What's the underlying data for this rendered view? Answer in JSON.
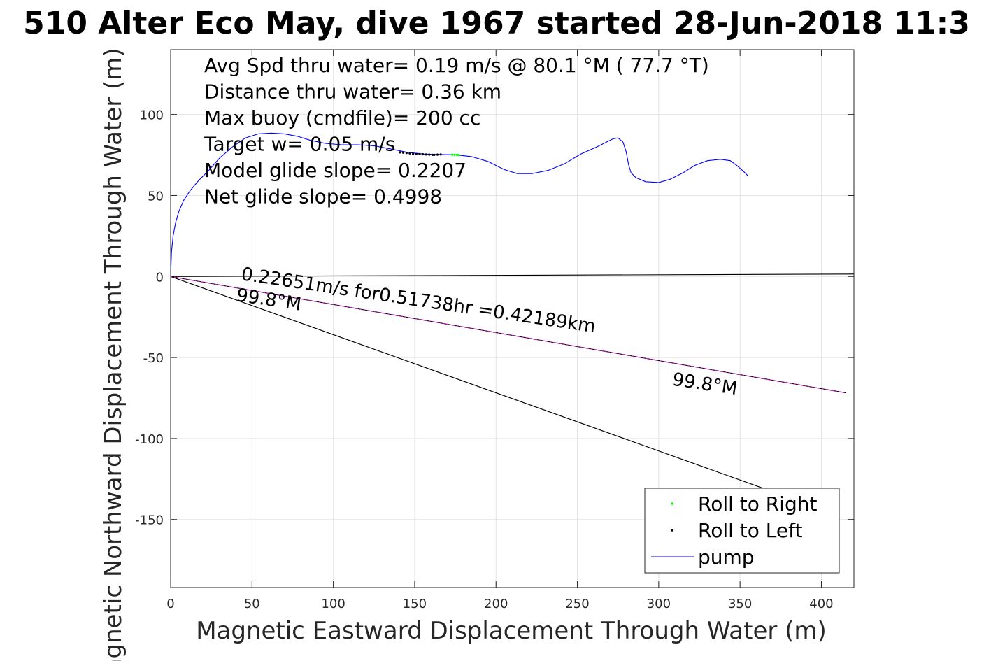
{
  "chart_data": {
    "type": "line",
    "title": "510 Alter Eco May, dive 1967 started 28-Jun-2018 11:3",
    "xlabel": "Magnetic Eastward Displacement Through Water (m)",
    "ylabel": "Magnetic Northward Displacement Through Water (m)",
    "xlim": [
      0,
      420
    ],
    "ylim": [
      -192,
      140
    ],
    "xticks": [
      0,
      50,
      100,
      150,
      200,
      250,
      300,
      350,
      400
    ],
    "yticks": [
      -150,
      -100,
      -50,
      0,
      50,
      100
    ],
    "xtick_labels": [
      "0",
      "50",
      "100",
      "150",
      "200",
      "250",
      "300",
      "350",
      "400"
    ],
    "ytick_labels": [
      "-150",
      "-100",
      "-50",
      "0",
      "50",
      "100"
    ],
    "grid": true,
    "info_lines": [
      "Avg Spd thru water=  0.19 m/s @  80.1 °M ( 77.7 °T)",
      "Distance thru water=  0.36 km",
      "Max buoy (cmdfile)= 200 cc",
      "Target w= 0.05 m/s",
      "Model glide slope= 0.2207",
      "Net glide slope= 0.4998"
    ],
    "annotations": [
      {
        "text": "0.22651m/s for0.51738hr =0.42189km",
        "x": 43,
        "y": -2,
        "angle_deg": 8.5
      },
      {
        "text": "99.8°M",
        "x": 40,
        "y": -15,
        "angle_deg": 8.5
      },
      {
        "text": "99.8°M",
        "x": 308,
        "y": -67,
        "angle_deg": 8.5
      }
    ],
    "series": [
      {
        "name": "pump",
        "kind": "line",
        "color": "#0000ff",
        "x": [
          0,
          0.5,
          1.5,
          3,
          5,
          8,
          12,
          17,
          23,
          30,
          38,
          46,
          54,
          62,
          70,
          78,
          86,
          95,
          105,
          115,
          125,
          135,
          145,
          155,
          165,
          175,
          185,
          195,
          205,
          213,
          222,
          232,
          242,
          252,
          262,
          268,
          272,
          275,
          278,
          280,
          281.5,
          283,
          286,
          292,
          300,
          307,
          315,
          322,
          330,
          338,
          344,
          348,
          352,
          355
        ],
        "y": [
          0,
          15,
          25,
          33,
          40,
          47,
          53,
          59,
          65,
          73,
          80,
          85.5,
          88,
          88.5,
          88,
          86.5,
          84,
          82.2,
          81.3,
          81.3,
          80.7,
          78.8,
          76.7,
          75.6,
          75.3,
          75.1,
          74,
          71,
          66,
          63.5,
          63.5,
          65.5,
          69.5,
          75.5,
          80,
          83,
          85,
          85.5,
          83,
          77,
          69,
          64,
          61,
          58.5,
          58,
          60,
          64,
          68.5,
          71.5,
          72.3,
          71.5,
          68.5,
          65,
          62
        ]
      },
      {
        "name": "Roll to Right",
        "kind": "dots",
        "color": "#00ff00",
        "x": [
          173,
          174.5,
          176,
          177
        ],
        "y": [
          75.2,
          75.1,
          75.1,
          75
        ]
      },
      {
        "name": "Roll to Left",
        "kind": "dots",
        "color": "#000000",
        "x": [
          141,
          143,
          145,
          147,
          149,
          151,
          153,
          155,
          157,
          159,
          161,
          162,
          164,
          166
        ],
        "y": [
          76.6,
          76.4,
          76.2,
          76,
          75.8,
          75.6,
          75.5,
          75.4,
          75.3,
          75.2,
          75.1,
          75.1,
          75.2,
          75.3
        ]
      },
      {
        "name": "",
        "kind": "line",
        "color": "#000000",
        "x": [
          0,
          420
        ],
        "y": [
          0,
          1.5
        ]
      },
      {
        "name": "",
        "kind": "line",
        "color": "#000000",
        "x": [
          0,
          365
        ],
        "y": [
          0,
          -131
        ]
      },
      {
        "name": "",
        "kind": "line",
        "color": "#000000",
        "x": [
          0,
          415
        ],
        "y": [
          0,
          -71.8
        ]
      },
      {
        "name": "",
        "kind": "dashed",
        "color": "#ff00ff",
        "x": [
          0,
          415
        ],
        "y": [
          0,
          -71.8
        ]
      }
    ],
    "legend": {
      "position": "bottom-right",
      "entries": [
        {
          "label": "Roll to Right",
          "kind": "dot",
          "color": "#00ff00"
        },
        {
          "label": "Roll to Left",
          "kind": "dot",
          "color": "#000000"
        },
        {
          "label": "pump",
          "kind": "line",
          "color": "#0000ff"
        }
      ]
    }
  }
}
